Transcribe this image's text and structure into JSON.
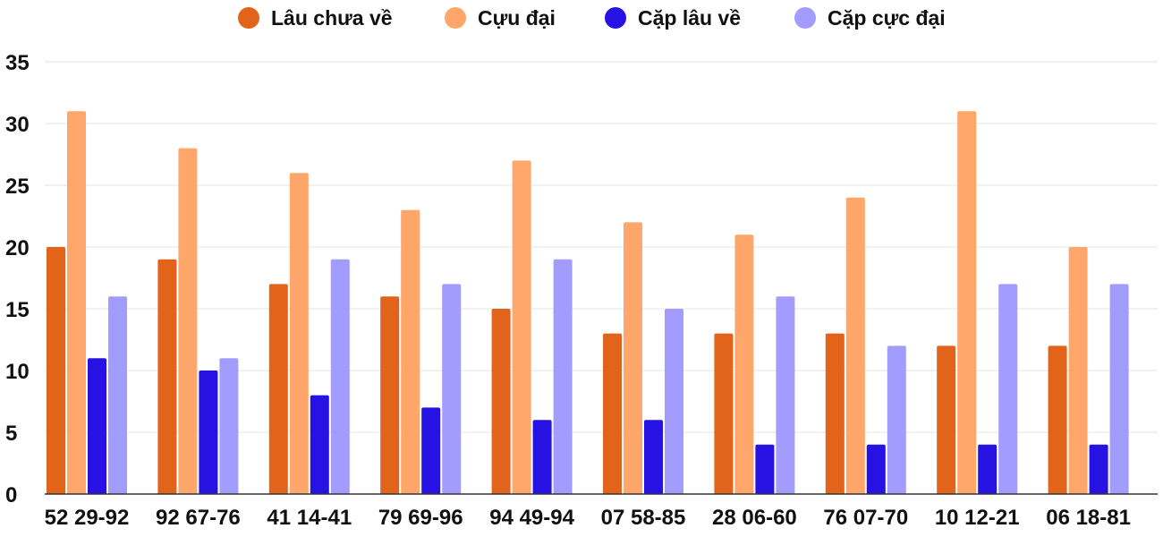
{
  "chart_data": {
    "type": "bar",
    "title": "",
    "xlabel": "",
    "ylabel": "",
    "ylim": [
      0,
      35
    ],
    "yticks": [
      0,
      5,
      10,
      15,
      20,
      25,
      30,
      35
    ],
    "grid": true,
    "legend_position": "top-center",
    "categories": [
      "52 29-92",
      "92 67-76",
      "41 14-41",
      "79 69-96",
      "94 49-94",
      "07 58-85",
      "28 06-60",
      "76 07-70",
      "10 12-21",
      "06 18-81"
    ],
    "series": [
      {
        "name": "Lâu chưa về",
        "color": "#e2641a",
        "values": [
          20,
          19,
          17,
          16,
          15,
          13,
          13,
          13,
          12,
          12
        ]
      },
      {
        "name": "Cựu đại",
        "color": "#ffa76b",
        "values": [
          31,
          28,
          26,
          23,
          27,
          22,
          21,
          24,
          31,
          20
        ]
      },
      {
        "name": "Cặp lâu về",
        "color": "#2612e2",
        "values": [
          11,
          10,
          8,
          7,
          6,
          6,
          4,
          4,
          4,
          4
        ]
      },
      {
        "name": "Cặp cực đại",
        "color": "#a39cff",
        "values": [
          16,
          11,
          19,
          17,
          19,
          15,
          16,
          12,
          17,
          17
        ]
      }
    ]
  }
}
